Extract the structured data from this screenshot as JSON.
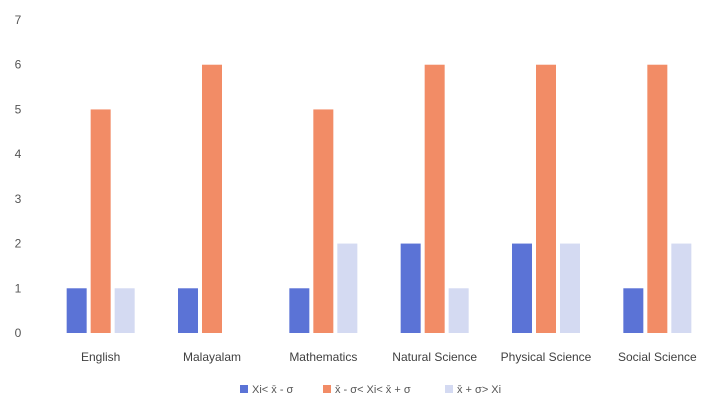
{
  "chart_data": {
    "type": "bar",
    "categories": [
      "English",
      "Malayalam",
      "Mathematics",
      "Natural Science",
      "Physical Science",
      "Social Science"
    ],
    "series": [
      {
        "name": "Xi< x̄ - σ",
        "color": "#5B73D6",
        "values": [
          1,
          1,
          1,
          2,
          2,
          1
        ]
      },
      {
        "name": "x̄ - σ< Xi< x̄ + σ",
        "color": "#F28C66",
        "values": [
          5,
          6,
          5,
          6,
          6,
          6
        ]
      },
      {
        "name": "x̄ + σ> Xi",
        "color": "#D4DAF2",
        "values": [
          1,
          0,
          2,
          1,
          2,
          2
        ]
      }
    ],
    "y_ticks": [
      "0",
      "1",
      "2",
      "3",
      "4",
      "5",
      "6",
      "7"
    ],
    "ylim": [
      0,
      7
    ],
    "grid": false,
    "legend_position": "bottom"
  }
}
